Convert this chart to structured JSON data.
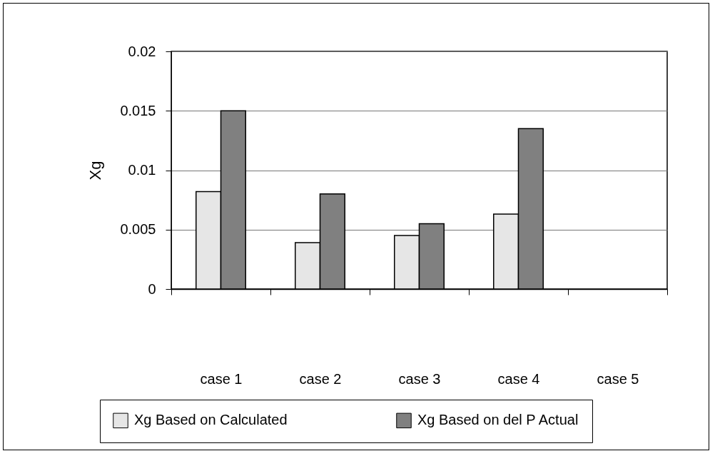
{
  "chart_data": {
    "type": "bar",
    "ylabel": "Xg",
    "categories": [
      "case 1",
      "case 2",
      "case 3",
      "case 4",
      "case 5"
    ],
    "series": [
      {
        "name": "Xg Based on Calculated",
        "color": "#e6e6e6",
        "values": [
          0.0082,
          0.0039,
          0.0045,
          0.0063,
          null
        ]
      },
      {
        "name": "Xg Based on del P Actual",
        "color": "#808080",
        "values": [
          0.015,
          0.008,
          0.0055,
          0.0135,
          null
        ]
      }
    ],
    "ylim": [
      0,
      0.02
    ],
    "yticks": [
      0,
      0.005,
      0.01,
      0.015,
      0.02
    ],
    "grid": "y",
    "legend": "bottom"
  }
}
